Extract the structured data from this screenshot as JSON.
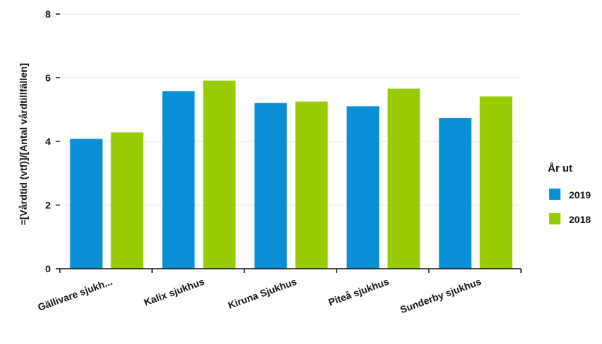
{
  "chart_data": {
    "type": "bar",
    "categories": [
      "Gällivare sjukh...",
      "Kalix sjukhus",
      "Kiruna Sjukhus",
      "Piteå sjukhus",
      "Sunderby sjukhus"
    ],
    "series": [
      {
        "name": "2019",
        "color": "#0a8fd6",
        "values": [
          4.08,
          5.58,
          5.21,
          5.1,
          4.73
        ]
      },
      {
        "name": "2018",
        "color": "#99cc00",
        "values": [
          4.28,
          5.91,
          5.25,
          5.66,
          5.41
        ]
      }
    ],
    "ylabel": "=[Vårdtid (vtf)]/[Antal vårdtillfällen]",
    "ylim": [
      0,
      8
    ],
    "yticks": [
      0,
      2,
      4,
      6,
      8
    ],
    "grid": true,
    "legend": {
      "title": "År ut",
      "placement": "right"
    }
  }
}
